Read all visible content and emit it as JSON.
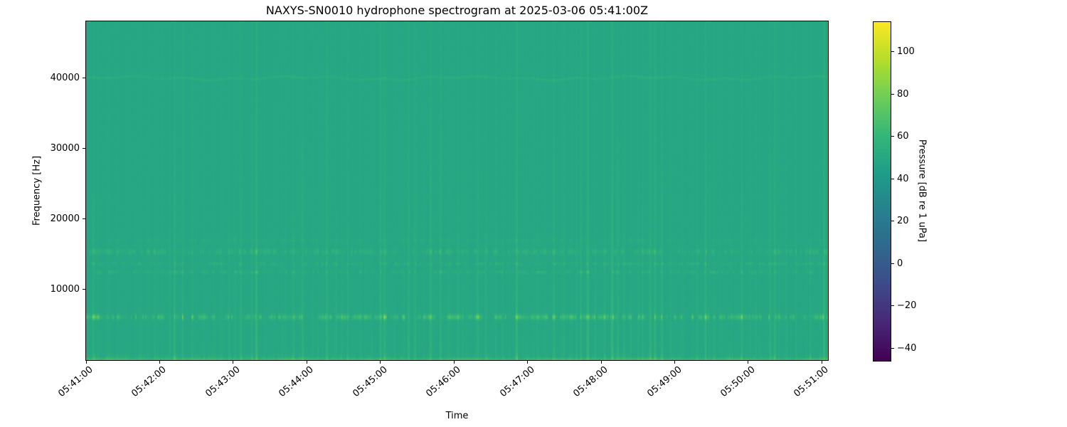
{
  "window": {
    "background": "#ffffff"
  },
  "chart_data": {
    "type": "heatmap",
    "subtype": "spectrogram",
    "title": "NAXYS-SN0010 hydrophone spectrogram at 2025-03-06 05:41:00Z",
    "xlabel": "Time",
    "ylabel": "Frequency [Hz]",
    "x_ticks": [
      "05:41:00",
      "05:42:00",
      "05:43:00",
      "05:44:00",
      "05:45:00",
      "05:46:00",
      "05:47:00",
      "05:48:00",
      "05:49:00",
      "05:50:00",
      "05:51:00"
    ],
    "x_tick_interval_s": 60,
    "time_span_s": 605,
    "y_ticks": [
      {
        "label": "10000",
        "hz": 10000
      },
      {
        "label": "20000",
        "hz": 20000
      },
      {
        "label": "30000",
        "hz": 30000
      },
      {
        "label": "40000",
        "hz": 40000
      }
    ],
    "freq_min_hz": 0,
    "freq_max_hz": 48000,
    "colormap": "viridis",
    "grid": false,
    "colorbar": {
      "label": "Pressure [dB re 1 uPa]",
      "vmin": -46,
      "vmax": 114,
      "ticks": [
        {
          "label": "100",
          "value": 100
        },
        {
          "label": "80",
          "value": 80
        },
        {
          "label": "60",
          "value": 60
        },
        {
          "label": "40",
          "value": 40
        },
        {
          "label": "20",
          "value": 20
        },
        {
          "label": "0",
          "value": 0
        },
        {
          "label": "−20",
          "value": -20
        },
        {
          "label": "−40",
          "value": -40
        }
      ]
    },
    "background_level_db": 49,
    "bands": [
      {
        "freq_hz": 120,
        "bandwidth_hz": 150,
        "peak_db": 13,
        "character": "smooth"
      },
      {
        "freq_hz": 420,
        "bandwidth_hz": 260,
        "peak_db": 7,
        "character": "speckled"
      },
      {
        "freq_hz": 6150,
        "bandwidth_hz": 250,
        "peak_db": 26,
        "character": "speckled"
      },
      {
        "freq_hz": 12500,
        "bandwidth_hz": 150,
        "peak_db": 10,
        "character": "speckled"
      },
      {
        "freq_hz": 13700,
        "bandwidth_hz": 180,
        "peak_db": 8,
        "character": "speckled"
      },
      {
        "freq_hz": 15400,
        "bandwidth_hz": 260,
        "peak_db": 11,
        "character": "speckled"
      },
      {
        "freq_hz": 17000,
        "bandwidth_hz": 220,
        "peak_db": 4,
        "character": "speckled"
      },
      {
        "freq_hz": 40000,
        "bandwidth_hz": 140,
        "peak_db": 5,
        "character": "tonal-wavy"
      }
    ],
    "transients": {
      "description": "broadband vertical striations recurring every few seconds",
      "major_times_s": [
        {
          "t": 72,
          "db": 9
        },
        {
          "t": 139,
          "db": 13
        },
        {
          "t": 263,
          "db": 9
        },
        {
          "t": 351,
          "db": 12
        },
        {
          "t": 470,
          "db": 8
        },
        {
          "t": 562,
          "db": 9
        },
        {
          "t": 602,
          "db": 12
        }
      ]
    },
    "render": {
      "seed": 42
    }
  }
}
